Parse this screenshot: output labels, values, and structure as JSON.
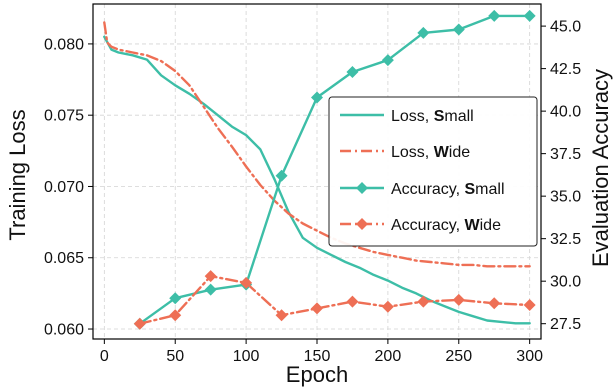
{
  "chart_data": {
    "type": "line",
    "xlabel": "Epoch",
    "ylabel_left": "Training Loss",
    "ylabel_right": "Evaluation Accuracy",
    "xlim": [
      -8,
      308
    ],
    "ylim_left": [
      0.0593,
      0.0828
    ],
    "ylim_right": [
      26.6,
      46.3
    ],
    "x_ticks": [
      0,
      50,
      100,
      150,
      200,
      250,
      300
    ],
    "y_ticks_left": [
      0.06,
      0.065,
      0.07,
      0.075,
      0.08
    ],
    "y_ticks_left_labels": [
      "0.060",
      "0.065",
      "0.070",
      "0.075",
      "0.080"
    ],
    "y_ticks_right": [
      27.5,
      30.0,
      32.5,
      35.0,
      37.5,
      40.0,
      42.5,
      45.0
    ],
    "y_ticks_right_labels": [
      "27.5",
      "30.0",
      "32.5",
      "35.0",
      "37.5",
      "40.0",
      "42.5",
      "45.0"
    ],
    "grid": true,
    "legend_position": "center-right",
    "series": [
      {
        "name": "Loss, Small",
        "name_prefix": "Loss, ",
        "name_bold": "S",
        "name_rest": "mall",
        "axis": "left",
        "style": "solid",
        "marker": "none",
        "color": "#3dbea7",
        "x": [
          0,
          5,
          10,
          20,
          30,
          40,
          50,
          60,
          70,
          80,
          90,
          100,
          110,
          120,
          130,
          140,
          150,
          160,
          170,
          180,
          190,
          200,
          210,
          220,
          230,
          240,
          250,
          260,
          270,
          280,
          290,
          300
        ],
        "values": [
          0.0805,
          0.0796,
          0.0794,
          0.0792,
          0.0789,
          0.0778,
          0.0771,
          0.0765,
          0.0758,
          0.075,
          0.0742,
          0.0736,
          0.0726,
          0.0705,
          0.0682,
          0.0664,
          0.0657,
          0.0652,
          0.0647,
          0.0643,
          0.0638,
          0.0634,
          0.0629,
          0.0625,
          0.062,
          0.0616,
          0.0612,
          0.0609,
          0.0606,
          0.0605,
          0.0604,
          0.0604
        ]
      },
      {
        "name": "Loss, Wide",
        "name_prefix": "Loss, ",
        "name_bold": "W",
        "name_rest": "ide",
        "axis": "left",
        "style": "dashdot",
        "marker": "none",
        "color": "#ee6f55",
        "x": [
          0,
          2,
          5,
          10,
          20,
          30,
          40,
          50,
          60,
          70,
          80,
          90,
          100,
          110,
          120,
          130,
          140,
          150,
          160,
          170,
          180,
          190,
          200,
          210,
          220,
          230,
          240,
          250,
          260,
          270,
          280,
          290,
          300
        ],
        "values": [
          0.0815,
          0.0801,
          0.0798,
          0.0796,
          0.0794,
          0.0792,
          0.0788,
          0.0781,
          0.0771,
          0.0756,
          0.0741,
          0.0728,
          0.0714,
          0.0701,
          0.069,
          0.0681,
          0.0674,
          0.0669,
          0.0664,
          0.066,
          0.0657,
          0.0654,
          0.0652,
          0.065,
          0.0648,
          0.0647,
          0.0646,
          0.0645,
          0.0645,
          0.0644,
          0.0644,
          0.0644,
          0.0644
        ]
      },
      {
        "name": "Accuracy, Small",
        "name_prefix": "Accuracy, ",
        "name_bold": "S",
        "name_rest": "mall",
        "axis": "right",
        "style": "solid",
        "marker": "diamond",
        "color": "#3dbea7",
        "x": [
          25,
          50,
          75,
          100,
          125,
          150,
          175,
          200,
          225,
          250,
          275,
          300
        ],
        "values": [
          27.5,
          29.0,
          29.5,
          29.8,
          36.2,
          40.8,
          42.3,
          43.0,
          44.6,
          44.8,
          45.6,
          45.6
        ]
      },
      {
        "name": "Accuracy, Wide",
        "name_prefix": "Accuracy, ",
        "name_bold": "W",
        "name_rest": "ide",
        "axis": "right",
        "style": "dashdot",
        "marker": "diamond",
        "color": "#ee6f55",
        "x": [
          25,
          50,
          75,
          100,
          125,
          150,
          175,
          200,
          225,
          250,
          275,
          300
        ],
        "values": [
          27.5,
          28.0,
          30.3,
          29.9,
          28.0,
          28.4,
          28.8,
          28.5,
          28.8,
          28.9,
          28.7,
          28.6
        ]
      }
    ]
  }
}
